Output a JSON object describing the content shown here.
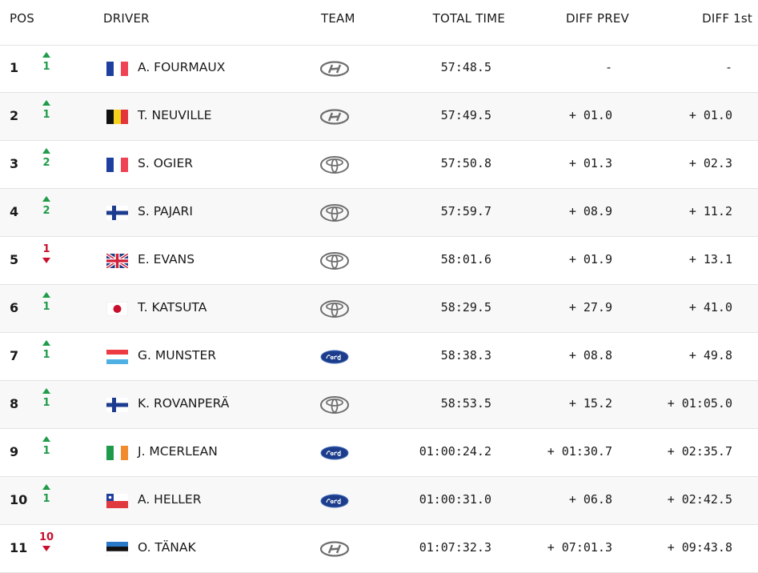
{
  "table": {
    "headers": [
      "POS",
      "DRIVER",
      "TEAM",
      "TOTAL TIME",
      "DIFF PREV",
      "DIFF 1st"
    ],
    "rows": [
      {
        "pos": 1,
        "change": 1,
        "direction": "up",
        "flag": "FR",
        "driver": "A. FOURMAUX",
        "team": "hyundai",
        "total": "57:48.5",
        "diff_prev": "-",
        "diff_first": "-"
      },
      {
        "pos": 2,
        "change": 1,
        "direction": "up",
        "flag": "BE",
        "driver": "T. NEUVILLE",
        "team": "hyundai",
        "total": "57:49.5",
        "diff_prev": "+ 01.0",
        "diff_first": "+ 01.0"
      },
      {
        "pos": 3,
        "change": 2,
        "direction": "up",
        "flag": "FR",
        "driver": "S. OGIER",
        "team": "toyota",
        "total": "57:50.8",
        "diff_prev": "+ 01.3",
        "diff_first": "+ 02.3"
      },
      {
        "pos": 4,
        "change": 2,
        "direction": "up",
        "flag": "FI",
        "driver": "S. PAJARI",
        "team": "toyota",
        "total": "57:59.7",
        "diff_prev": "+ 08.9",
        "diff_first": "+ 11.2"
      },
      {
        "pos": 5,
        "change": 1,
        "direction": "down",
        "flag": "GB",
        "driver": "E. EVANS",
        "team": "toyota",
        "total": "58:01.6",
        "diff_prev": "+ 01.9",
        "diff_first": "+ 13.1"
      },
      {
        "pos": 6,
        "change": 1,
        "direction": "up",
        "flag": "JP",
        "driver": "T. KATSUTA",
        "team": "toyota",
        "total": "58:29.5",
        "diff_prev": "+ 27.9",
        "diff_first": "+ 41.0"
      },
      {
        "pos": 7,
        "change": 1,
        "direction": "up",
        "flag": "LU",
        "driver": "G. MUNSTER",
        "team": "ford",
        "total": "58:38.3",
        "diff_prev": "+ 08.8",
        "diff_first": "+ 49.8"
      },
      {
        "pos": 8,
        "change": 1,
        "direction": "up",
        "flag": "FI",
        "driver": "K. ROVANPERÄ",
        "team": "toyota",
        "total": "58:53.5",
        "diff_prev": "+ 15.2",
        "diff_first": "+ 01:05.0"
      },
      {
        "pos": 9,
        "change": 1,
        "direction": "up",
        "flag": "IE",
        "driver": "J. MCERLEAN",
        "team": "ford",
        "total": "01:00:24.2",
        "diff_prev": "+ 01:30.7",
        "diff_first": "+ 02:35.7"
      },
      {
        "pos": 10,
        "change": 1,
        "direction": "up",
        "flag": "CL",
        "driver": "A. HELLER",
        "team": "ford",
        "total": "01:00:31.0",
        "diff_prev": "+ 06.8",
        "diff_first": "+ 02:42.5"
      },
      {
        "pos": 11,
        "change": 10,
        "direction": "down",
        "flag": "EE",
        "driver": "O. TÄNAK",
        "team": "hyundai",
        "total": "01:07:32.3",
        "diff_prev": "+ 07:01.3",
        "diff_first": "+ 09:43.8"
      }
    ]
  }
}
